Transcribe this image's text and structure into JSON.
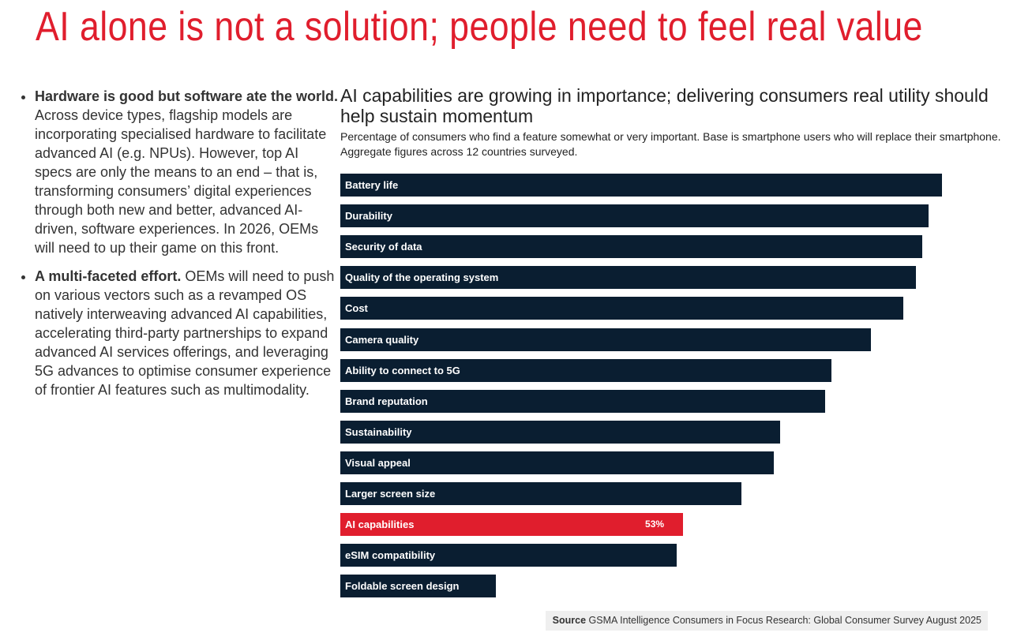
{
  "slide": {
    "title": "AI alone is not a solution; people need to feel real value",
    "bullets": [
      {
        "bold": "Hardware is good but software ate the world.",
        "text": " Across device types, flagship models are incorporating specialised hardware to facilitate advanced AI (e.g. NPUs). However, top AI specs are only the means to an end – that is, transforming consumers’ digital experiences through both new and better, advanced AI-driven, software experiences. In 2026, OEMs will need to up their game on this front."
      },
      {
        "bold": "A multi-faceted effort.",
        "text": " OEMs will need to push on various vectors such as a revamped OS natively interweaving advanced AI capabilities, accelerating third-party partnerships to expand advanced AI services offerings, and leveraging 5G advances to optimise consumer experience of frontier AI features such as multimodality."
      }
    ],
    "source_label": "Source",
    "source_text": " GSMA Intelligence Consumers in Focus Research: Global Consumer Survey August 2025"
  },
  "colors": {
    "accent": "#e01e2d",
    "bar": "#0a1e31"
  },
  "chart_data": {
    "type": "bar",
    "orientation": "horizontal",
    "title": "AI capabilities are growing in importance; delivering consumers real utility should help sustain momentum",
    "subtitle": "Percentage of consumers who find a feature somewhat or very important. Base is smartphone users who will replace their smartphone. Aggregate figures across 12 countries surveyed.",
    "unit": "%",
    "xlim": [
      0,
      100
    ],
    "categories": [
      "Battery life",
      "Durability",
      "Security of data",
      "Quality of the operating system",
      "Cost",
      "Camera quality",
      "Ability to connect to 5G",
      "Brand reputation",
      "Sustainability",
      "Visual appeal",
      "Larger screen size",
      "AI capabilities",
      "eSIM compatibility",
      "Foldable screen design"
    ],
    "values": [
      93,
      91,
      90,
      89,
      87,
      82,
      76,
      75,
      68,
      67,
      62,
      53,
      52,
      24
    ],
    "highlight": "AI capabilities",
    "data_labels": {
      "AI capabilities": "53%"
    }
  }
}
